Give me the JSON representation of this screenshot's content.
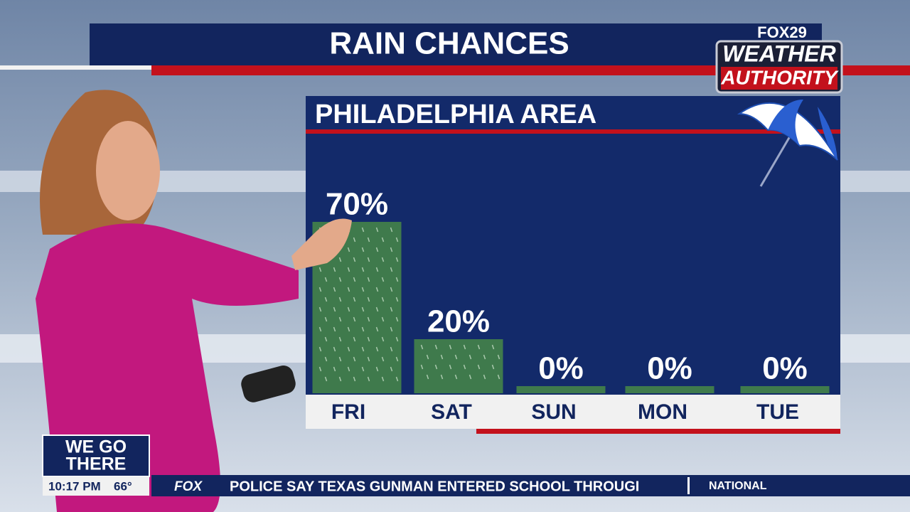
{
  "title": "RAIN CHANCES",
  "branding": {
    "station": "FOX29",
    "line1": "WEATHER",
    "line2": "AUTHORITY"
  },
  "chart_data": {
    "type": "bar",
    "title": "PHILADELPHIA AREA",
    "categories": [
      "FRI",
      "SAT",
      "SUN",
      "MON",
      "TUE"
    ],
    "values": [
      70,
      20,
      0,
      0,
      0
    ],
    "value_labels": [
      "70%",
      "20%",
      "0%",
      "0%",
      "0%"
    ],
    "color": "#3f7a4c"
  },
  "lower_third": {
    "slogan_line1": "WE GO",
    "slogan_line2": "THERE",
    "time": "10:17 PM",
    "temperature": "66°"
  },
  "ticker": {
    "network": "FOX",
    "headline": "POLICE SAY TEXAS GUNMAN ENTERED SCHOOL THROUGI",
    "section": "NATIONAL"
  }
}
